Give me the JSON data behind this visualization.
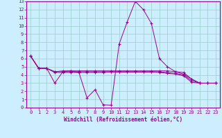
{
  "xlabel": "Windchill (Refroidissement éolien,°C)",
  "background_color": "#cceeff",
  "grid_color": "#99cccc",
  "line_color": "#990099",
  "hours": [
    0,
    1,
    2,
    3,
    4,
    5,
    6,
    7,
    8,
    9,
    10,
    11,
    12,
    13,
    14,
    15,
    16,
    17,
    18,
    19,
    20,
    21,
    22,
    23
  ],
  "series1": [
    6.3,
    4.8,
    4.8,
    3.0,
    4.4,
    4.5,
    4.3,
    1.2,
    2.2,
    0.35,
    0.3,
    7.8,
    10.5,
    13.0,
    12.0,
    10.3,
    6.0,
    5.0,
    4.4,
    4.1,
    3.5,
    3.0,
    3.0,
    3.0
  ],
  "series2": [
    6.3,
    4.8,
    4.8,
    4.4,
    4.5,
    4.5,
    4.5,
    4.5,
    4.5,
    4.5,
    4.5,
    4.5,
    4.5,
    4.5,
    4.5,
    4.5,
    4.5,
    4.5,
    4.4,
    4.3,
    3.5,
    3.0,
    3.0,
    3.0
  ],
  "series3": [
    6.3,
    4.8,
    4.8,
    4.4,
    4.4,
    4.4,
    4.4,
    4.4,
    4.4,
    4.4,
    4.4,
    4.4,
    4.4,
    4.4,
    4.4,
    4.4,
    4.4,
    4.3,
    4.2,
    4.0,
    3.3,
    3.0,
    3.0,
    3.0
  ],
  "series4": [
    6.3,
    4.8,
    4.8,
    4.3,
    4.3,
    4.3,
    4.3,
    4.3,
    4.3,
    4.3,
    4.35,
    4.35,
    4.35,
    4.35,
    4.35,
    4.35,
    4.3,
    4.2,
    4.1,
    3.9,
    3.1,
    3.0,
    3.0,
    3.0
  ],
  "ylim": [
    0,
    13
  ],
  "xlim_min": -0.5,
  "xlim_max": 23.5,
  "yticks": [
    0,
    1,
    2,
    3,
    4,
    5,
    6,
    7,
    8,
    9,
    10,
    11,
    12,
    13
  ],
  "xticks": [
    0,
    1,
    2,
    3,
    4,
    5,
    6,
    7,
    8,
    9,
    10,
    11,
    12,
    13,
    14,
    15,
    16,
    17,
    18,
    19,
    20,
    21,
    22,
    23
  ]
}
